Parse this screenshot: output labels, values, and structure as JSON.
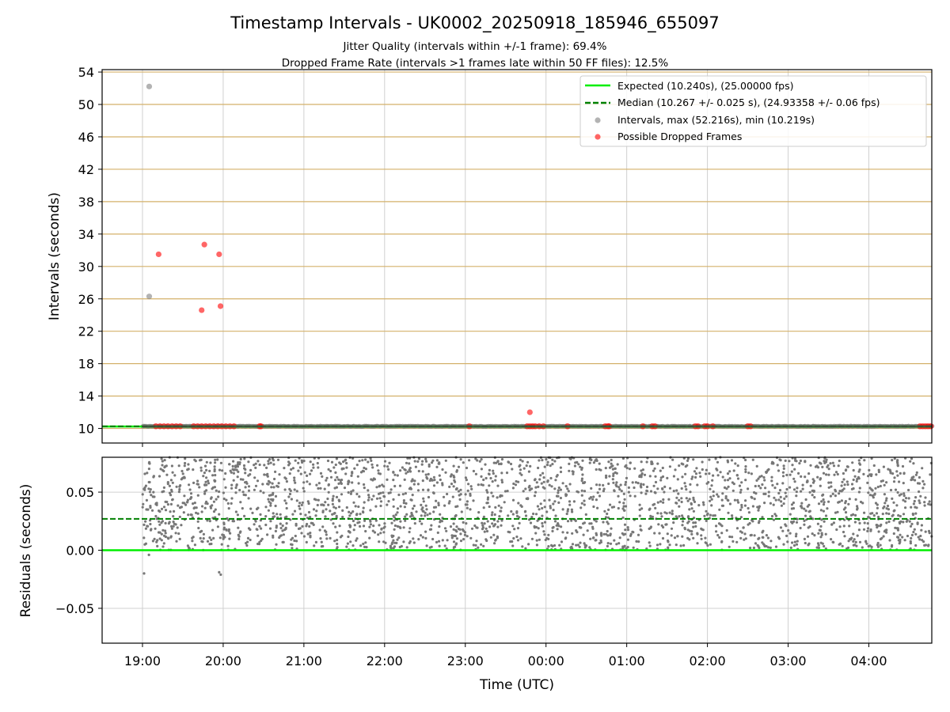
{
  "chart_data": [
    {
      "panel": "intervals",
      "type": "scatter",
      "title": "Timestamp Intervals - UK0002_20250918_185946_655097",
      "subtitles": [
        "Jitter Quality (intervals within +/-1 frame): 69.4%",
        "Dropped Frame Rate (intervals >1 frames late within 50 FF files): 12.5%"
      ],
      "xlabel": "",
      "ylabel": "Intervals (seconds)",
      "x_range_hours": [
        18.5,
        28.78
      ],
      "ylim": [
        8.2,
        54.3
      ],
      "ytick_values": [
        10,
        14,
        18,
        22,
        26,
        30,
        34,
        38,
        42,
        46,
        50,
        54
      ],
      "ytick_labels": [
        "10",
        "14",
        "18",
        "22",
        "26",
        "30",
        "34",
        "38",
        "42",
        "46",
        "50",
        "54"
      ],
      "grid": true,
      "legend_position": "upper right",
      "legend": [
        "Expected (10.240s), (25.00000 fps)",
        "Median (10.267 +/- 0.025 s), (24.93358 +/- 0.06 fps)",
        "Intervals, max (52.216s), min (10.219s)",
        "Possible Dropped Frames"
      ],
      "expected": 10.24,
      "median": 10.267,
      "series": [
        {
          "name": "Intervals, max (52.216s), min (10.219s)",
          "color": "#808080",
          "x_time_utc": [
            "19:05",
            "19:05"
          ],
          "y": [
            52.216,
            26.3
          ],
          "note_dense_band": "thousands of intervals between 10.219 and 10.32 s spanning 19:00–04:47"
        },
        {
          "name": "Possible Dropped Frames",
          "color": "#ff0000",
          "x_time_utc": [
            "19:12",
            "19:44",
            "19:46",
            "19:58",
            "19:57",
            "23:48"
          ],
          "y": [
            31.5,
            24.6,
            32.7,
            25.1,
            31.5,
            12.0
          ],
          "near_baseline_clusters_time_utc": [
            "19:10",
            "19:13",
            "19:16",
            "19:19",
            "19:22",
            "19:25",
            "19:28",
            "19:38",
            "19:41",
            "19:44",
            "19:47",
            "19:50",
            "19:53",
            "19:56",
            "19:59",
            "20:02",
            "20:05",
            "20:08",
            "20:27",
            "20:28",
            "23:03",
            "23:46",
            "23:48",
            "23:50",
            "23:52",
            "23:55",
            "23:58",
            "00:16",
            "00:44",
            "00:46",
            "00:47",
            "01:12",
            "01:19",
            "01:21",
            "01:51",
            "01:53",
            "01:58",
            "02:00",
            "02:04",
            "02:30",
            "02:32",
            "04:38",
            "04:40",
            "04:42",
            "04:44",
            "04:46"
          ]
        }
      ]
    },
    {
      "panel": "residuals",
      "type": "scatter",
      "xlabel": "Time (UTC)",
      "ylabel": "Residuals (seconds)",
      "ylim": [
        -0.08,
        0.08
      ],
      "ytick_values": [
        0.05,
        0.0,
        -0.05
      ],
      "ytick_labels": [
        "0.05",
        "0.00",
        "−0.05"
      ],
      "xtick_labels": [
        "19:00",
        "20:00",
        "21:00",
        "22:00",
        "23:00",
        "00:00",
        "01:00",
        "02:00",
        "03:00",
        "04:00"
      ],
      "xtick_hours": [
        19,
        20,
        21,
        22,
        23,
        24,
        25,
        26,
        27,
        28
      ],
      "grid": true,
      "expected_residual": 0.0,
      "median_residual": 0.027,
      "points": {
        "color": "#808080",
        "x_range_hours": [
          19.0,
          28.78
        ],
        "y_range": [
          0.0,
          0.08
        ],
        "outliers": [
          {
            "x_hours": 19.02,
            "y": -0.02
          },
          {
            "x_hours": 19.08,
            "y": -0.004
          },
          {
            "x_hours": 19.95,
            "y": -0.019
          },
          {
            "x_hours": 19.97,
            "y": -0.021
          }
        ]
      }
    }
  ]
}
